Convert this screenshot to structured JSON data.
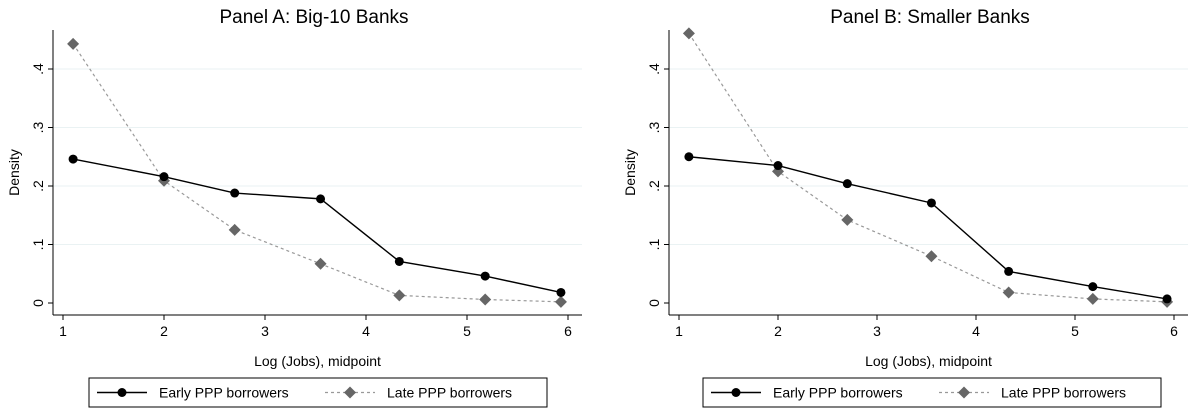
{
  "chart_data": [
    {
      "type": "line",
      "title": "Panel A: Big-10 Banks",
      "xlabel": "Log (Jobs), midpoint",
      "ylabel": "Density",
      "xlim": [
        1,
        6
      ],
      "ylim": [
        0,
        0.45
      ],
      "xticks": [
        1,
        2,
        3,
        4,
        5,
        6
      ],
      "xtick_labels": [
        "1",
        "2",
        "3",
        "4",
        "5",
        "6"
      ],
      "yticks": [
        0,
        0.1,
        0.2,
        0.3,
        0.4
      ],
      "ytick_labels": [
        "0",
        ".1",
        ".2",
        ".3",
        ".4"
      ],
      "grid": "horizontal",
      "legend_position": "bottom",
      "x": [
        1.1,
        2.0,
        2.7,
        3.55,
        4.33,
        5.18,
        5.93
      ],
      "series": [
        {
          "name": "Early PPP borrowers",
          "marker": "circle",
          "line": "solid",
          "color": "#000000",
          "values": [
            0.246,
            0.216,
            0.188,
            0.178,
            0.071,
            0.046,
            0.018
          ]
        },
        {
          "name": "Late PPP borrowers",
          "marker": "diamond",
          "line": "dashed",
          "color": "#666666",
          "values": [
            0.443,
            0.209,
            0.125,
            0.067,
            0.013,
            0.006,
            0.002
          ]
        }
      ]
    },
    {
      "type": "line",
      "title": "Panel B: Smaller Banks",
      "xlabel": "Log (Jobs), midpoint",
      "ylabel": "Density",
      "xlim": [
        1,
        6
      ],
      "ylim": [
        0,
        0.45
      ],
      "xticks": [
        1,
        2,
        3,
        4,
        5,
        6
      ],
      "xtick_labels": [
        "1",
        "2",
        "3",
        "4",
        "5",
        "6"
      ],
      "yticks": [
        0,
        0.1,
        0.2,
        0.3,
        0.4
      ],
      "ytick_labels": [
        "0",
        ".1",
        ".2",
        ".3",
        ".4"
      ],
      "grid": "horizontal",
      "legend_position": "bottom",
      "x": [
        1.1,
        2.0,
        2.7,
        3.55,
        4.33,
        5.18,
        5.93
      ],
      "series": [
        {
          "name": "Early PPP borrowers",
          "marker": "circle",
          "line": "solid",
          "color": "#000000",
          "values": [
            0.25,
            0.235,
            0.204,
            0.171,
            0.054,
            0.028,
            0.007
          ]
        },
        {
          "name": "Late PPP borrowers",
          "marker": "diamond",
          "line": "dashed",
          "color": "#666666",
          "values": [
            0.461,
            0.225,
            0.142,
            0.08,
            0.018,
            0.007,
            0.002
          ]
        }
      ]
    }
  ]
}
